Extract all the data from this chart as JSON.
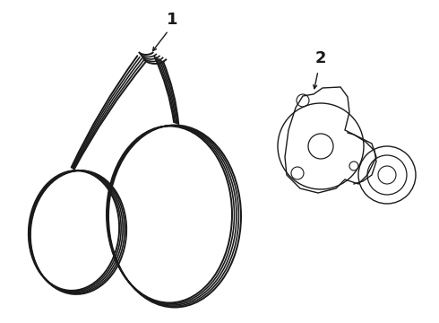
{
  "bg_color": "#ffffff",
  "line_color": "#1a1a1a",
  "label1": "1",
  "label2": "2",
  "fig_w": 4.9,
  "fig_h": 3.6,
  "dpi": 100
}
